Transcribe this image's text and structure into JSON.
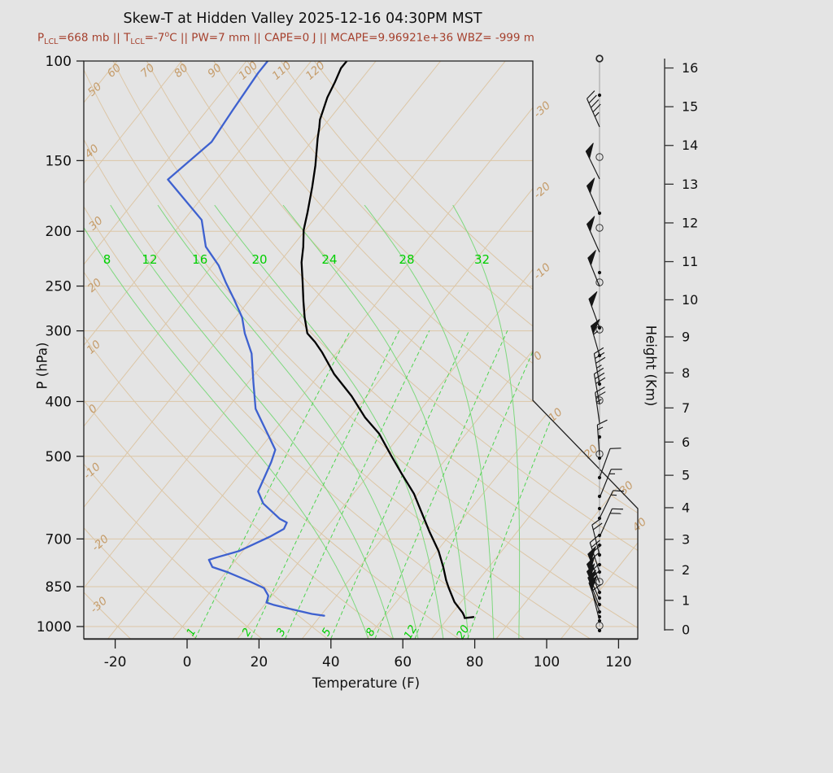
{
  "title": "Skew-T at Hidden Valley 2025-12-16 04:30PM MST",
  "subtitle": {
    "text": "P_LCL=668 mb || T_LCL=-7°C || PW=7 mm || CAPE=0 J || MCAPE=9.96921e+36 WBZ= -999 m",
    "segments": [
      {
        "t": "P"
      },
      {
        "sub": "LCL"
      },
      {
        "t": "=668 mb || T"
      },
      {
        "sub": "LCL"
      },
      {
        "t": "=-7"
      },
      {
        "sup": "o"
      },
      {
        "t": "C || PW=7 mm || CAPE=0 J || MCAPE=9.96921e+36 WBZ= -999 m"
      }
    ]
  },
  "colors": {
    "background": "#e4e4e4",
    "subtitle": "#a5402d",
    "tan_line": "#dcc6a6",
    "tan_label": "#c59c6a",
    "moist_line": "#7ed87e",
    "mixing_line": "#4fd44f",
    "green_label": "#00cf00",
    "temperature_curve": "#000000",
    "dewpoint_curve": "#3e61cf",
    "axis": "#1f1f1f",
    "wind": "#161616",
    "staff": "#999999"
  },
  "chart_data": {
    "type": "line",
    "subtype": "skewt-sounding",
    "x_axis": {
      "label": "Temperature (F)",
      "ticks": [
        -20,
        0,
        20,
        40,
        60,
        80,
        100,
        120
      ]
    },
    "pressure_axis": {
      "label": "P (hPa)",
      "ticks": [
        100,
        150,
        200,
        250,
        300,
        400,
        500,
        700,
        850,
        1000
      ]
    },
    "height_axis": {
      "label": "Height (Km)",
      "ticks": [
        0,
        1,
        2,
        3,
        4,
        5,
        6,
        7,
        8,
        9,
        10,
        11,
        12,
        13,
        14,
        15,
        16
      ]
    },
    "gridlines": {
      "isobars": [
        150,
        200,
        250,
        300,
        400,
        500,
        700,
        850,
        1000
      ],
      "isotherms_c": [
        -120,
        -110,
        -100,
        -90,
        -80,
        -70,
        -60,
        -50,
        -40,
        -30,
        -20,
        -10,
        0,
        10,
        20,
        30,
        40
      ],
      "isotherm_labels_right": [
        -30,
        -20,
        -10,
        0
      ],
      "isotherm_labels_diagonal": [
        10,
        20,
        30,
        40
      ],
      "dry_adiabats_c": [
        -30,
        -20,
        -10,
        0,
        10,
        20,
        30,
        40,
        50,
        60,
        70,
        80,
        90,
        100,
        110,
        120
      ],
      "moist_adiabats_c": [
        8,
        12,
        16,
        20,
        24,
        28,
        32
      ],
      "mixing_ratio_gkg": [
        1,
        2,
        3,
        5,
        8,
        12,
        20
      ]
    },
    "temperature_F": [
      [
        99,
        -84.1
      ],
      [
        103,
        -84.1
      ],
      [
        109,
        -82.7
      ],
      [
        116,
        -81.4
      ],
      [
        127,
        -78.5
      ],
      [
        131,
        -77.0
      ],
      [
        137,
        -75.0
      ],
      [
        153,
        -69.6
      ],
      [
        167,
        -65.7
      ],
      [
        185,
        -61.4
      ],
      [
        199,
        -58.5
      ],
      [
        213,
        -54.9
      ],
      [
        227,
        -51.9
      ],
      [
        246,
        -47.2
      ],
      [
        266,
        -42.7
      ],
      [
        284,
        -38.8
      ],
      [
        303,
        -34.5
      ],
      [
        314,
        -30.4
      ],
      [
        327,
        -26.3
      ],
      [
        358,
        -17.9
      ],
      [
        391,
        -8.3
      ],
      [
        427,
        0.3
      ],
      [
        456,
        7.8
      ],
      [
        499,
        16.1
      ],
      [
        538,
        23.2
      ],
      [
        582,
        30.8
      ],
      [
        629,
        37.2
      ],
      [
        679,
        43.5
      ],
      [
        735,
        50.4
      ],
      [
        785,
        55.3
      ],
      [
        828,
        59.0
      ],
      [
        855,
        61.5
      ],
      [
        905,
        66.2
      ],
      [
        945,
        70.8
      ],
      [
        958,
        72.0
      ],
      [
        966,
        72.6
      ],
      [
        962,
        74.8
      ]
    ],
    "dewpoint_F": [
      [
        99,
        -106.1
      ],
      [
        105,
        -106.1
      ],
      [
        122,
        -104.9
      ],
      [
        139,
        -103.7
      ],
      [
        162,
        -107.5
      ],
      [
        191,
        -89.1
      ],
      [
        213,
        -82.0
      ],
      [
        230,
        -74.2
      ],
      [
        246,
        -68.6
      ],
      [
        264,
        -62.4
      ],
      [
        284,
        -56.2
      ],
      [
        303,
        -51.9
      ],
      [
        329,
        -45.5
      ],
      [
        370,
        -38.6
      ],
      [
        412,
        -32.1
      ],
      [
        487,
        -17.5
      ],
      [
        512,
        -15.9
      ],
      [
        577,
        -13.0
      ],
      [
        606,
        -8.9
      ],
      [
        645,
        -0.9
      ],
      [
        655,
        1.9
      ],
      [
        672,
        2.5
      ],
      [
        694,
        0.3
      ],
      [
        735,
        -5.0
      ],
      [
        755,
        -10.0
      ],
      [
        762,
        -11.5
      ],
      [
        785,
        -8.9
      ],
      [
        800,
        -4.0
      ],
      [
        832,
        4.6
      ],
      [
        855,
        10.1
      ],
      [
        882,
        13.0
      ],
      [
        893,
        13.5
      ],
      [
        907,
        14.0
      ],
      [
        915,
        16.4
      ],
      [
        930,
        21.8
      ],
      [
        950,
        29.2
      ],
      [
        957,
        33.0
      ]
    ],
    "wind": {
      "staff_circles_y": [
        72,
        193,
        280,
        347,
        405,
        492,
        558,
        715,
        769
      ],
      "staff_dots_y": [
        117,
        262,
        335,
        403,
        437,
        472,
        537,
        563,
        587,
        610,
        625,
        637,
        658,
        670,
        682,
        694,
        703,
        728,
        735,
        743,
        752,
        758,
        763,
        775
      ],
      "barbs": [
        [
          156,
          45,
          24
        ],
        [
          220,
          50,
          26
        ],
        [
          263,
          50,
          24
        ],
        [
          310,
          50,
          24
        ],
        [
          352,
          50,
          22
        ],
        [
          403,
          50,
          20
        ],
        [
          437,
          55,
          16
        ],
        [
          472,
          35,
          10
        ],
        [
          497,
          30,
          10
        ],
        [
          520,
          25,
          8
        ],
        [
          560,
          15,
          4
        ],
        [
          587,
          10,
          -20
        ],
        [
          612,
          15,
          -22
        ],
        [
          637,
          15,
          -26
        ],
        [
          660,
          20,
          -24
        ],
        [
          682,
          20,
          14
        ],
        [
          703,
          35,
          18
        ],
        [
          716,
          50,
          22
        ],
        [
          728,
          65,
          24
        ],
        [
          737,
          60,
          24
        ],
        [
          745,
          55,
          22
        ],
        [
          752,
          50,
          20
        ],
        [
          763,
          10,
          14
        ]
      ]
    }
  }
}
